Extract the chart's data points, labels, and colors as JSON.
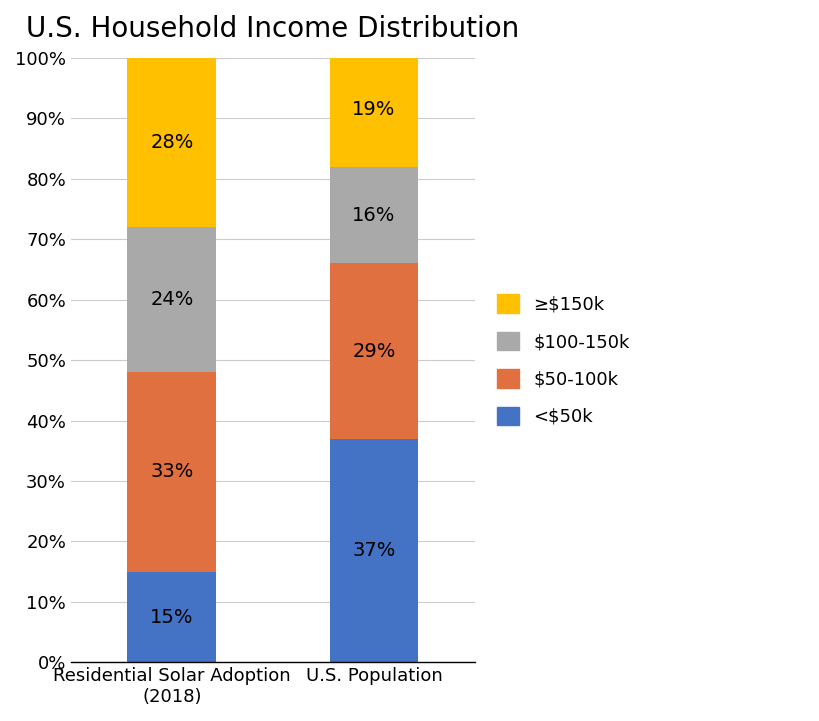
{
  "title": "U.S. Household Income Distribution",
  "categories": [
    "Residential Solar Adoption\n(2018)",
    "U.S. Population"
  ],
  "segments": [
    {
      "label": "<$50k",
      "color": "#4472C4",
      "values": [
        15,
        37
      ]
    },
    {
      "label": "$50-100k",
      "color": "#E07040",
      "values": [
        33,
        29
      ]
    },
    {
      "label": "$100-150k",
      "color": "#A9A9A9",
      "values": [
        24,
        16
      ]
    },
    {
      "label": "≥$150k",
      "color": "#FFC000",
      "values": [
        28,
        19
      ]
    }
  ],
  "bar_positions": [
    0.25,
    0.75
  ],
  "bar_width": 0.22,
  "xlim": [
    0.0,
    1.0
  ],
  "ylim": [
    0,
    100
  ],
  "ytick_labels": [
    "0%",
    "10%",
    "20%",
    "30%",
    "40%",
    "50%",
    "60%",
    "70%",
    "80%",
    "90%",
    "100%"
  ],
  "ytick_values": [
    0,
    10,
    20,
    30,
    40,
    50,
    60,
    70,
    80,
    90,
    100
  ],
  "label_fontsize": 14,
  "title_fontsize": 20,
  "tick_fontsize": 13,
  "legend_fontsize": 13,
  "background_color": "#FFFFFF",
  "grid_color": "#CCCCCC"
}
